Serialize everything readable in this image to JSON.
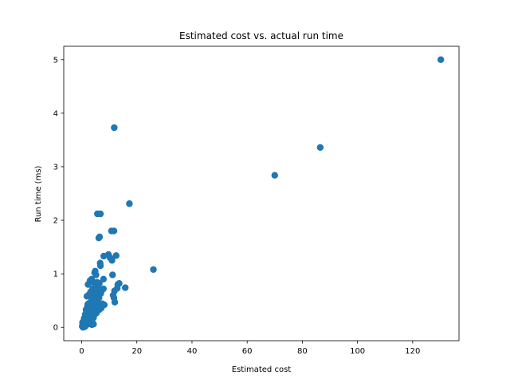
{
  "chart_data": {
    "type": "scatter",
    "title": "Estimated cost vs. actual run time",
    "xlabel": "Estimated cost",
    "ylabel": "Run time (ms)",
    "xlim": [
      -6.5,
      136.8
    ],
    "ylim": [
      -0.25,
      5.25
    ],
    "xticks": [
      0,
      20,
      40,
      60,
      80,
      100,
      120
    ],
    "yticks": [
      0,
      1,
      2,
      3,
      4,
      5
    ],
    "grid": false,
    "marker_color": "#1f77b4",
    "series": [
      {
        "points": [
          [
            130.2,
            5.0
          ],
          [
            86.5,
            3.36
          ],
          [
            70.0,
            2.84
          ],
          [
            11.8,
            3.73
          ],
          [
            17.3,
            2.31
          ],
          [
            5.7,
            2.12
          ],
          [
            6.8,
            2.12
          ],
          [
            6.2,
            1.67
          ],
          [
            6.5,
            1.69
          ],
          [
            10.8,
            1.8
          ],
          [
            11.7,
            1.8
          ],
          [
            26.0,
            1.08
          ],
          [
            8.0,
            1.33
          ],
          [
            9.7,
            1.36
          ],
          [
            10.3,
            1.3
          ],
          [
            12.5,
            1.34
          ],
          [
            6.7,
            1.2
          ],
          [
            6.8,
            1.15
          ],
          [
            11.0,
            1.25
          ],
          [
            4.7,
            1.02
          ],
          [
            4.9,
            1.05
          ],
          [
            5.2,
            0.98
          ],
          [
            11.2,
            0.98
          ],
          [
            2.3,
            0.8
          ],
          [
            3.0,
            0.87
          ],
          [
            3.6,
            0.9
          ],
          [
            4.3,
            0.84
          ],
          [
            5.6,
            0.84
          ],
          [
            6.4,
            0.82
          ],
          [
            7.9,
            0.9
          ],
          [
            13.1,
            0.8
          ],
          [
            13.6,
            0.82
          ],
          [
            15.8,
            0.74
          ],
          [
            12.9,
            0.73
          ],
          [
            11.9,
            0.68
          ],
          [
            11.4,
            0.6
          ],
          [
            11.7,
            0.55
          ],
          [
            12.0,
            0.47
          ],
          [
            7.2,
            0.68
          ],
          [
            7.9,
            0.72
          ],
          [
            6.9,
            0.63
          ],
          [
            1.9,
            0.58
          ],
          [
            2.4,
            0.6
          ],
          [
            3.4,
            0.56
          ],
          [
            4.1,
            0.62
          ],
          [
            4.9,
            0.55
          ],
          [
            5.6,
            0.6
          ],
          [
            6.3,
            0.55
          ],
          [
            2.2,
            0.43
          ],
          [
            2.7,
            0.45
          ],
          [
            3.3,
            0.47
          ],
          [
            3.9,
            0.43
          ],
          [
            4.6,
            0.46
          ],
          [
            5.3,
            0.43
          ],
          [
            6.0,
            0.45
          ],
          [
            6.7,
            0.4
          ],
          [
            7.5,
            0.44
          ],
          [
            8.2,
            0.42
          ],
          [
            1.6,
            0.33
          ],
          [
            2.4,
            0.35
          ],
          [
            3.1,
            0.36
          ],
          [
            3.7,
            0.33
          ],
          [
            4.4,
            0.36
          ],
          [
            5.0,
            0.32
          ],
          [
            5.7,
            0.34
          ],
          [
            6.4,
            0.33
          ],
          [
            7.1,
            0.36
          ],
          [
            1.3,
            0.24
          ],
          [
            1.9,
            0.26
          ],
          [
            2.6,
            0.27
          ],
          [
            3.3,
            0.25
          ],
          [
            4.0,
            0.26
          ],
          [
            4.7,
            0.24
          ],
          [
            5.4,
            0.27
          ],
          [
            0.9,
            0.17
          ],
          [
            1.5,
            0.18
          ],
          [
            2.2,
            0.19
          ],
          [
            2.9,
            0.17
          ],
          [
            3.6,
            0.19
          ],
          [
            4.3,
            0.18
          ],
          [
            0.6,
            0.11
          ],
          [
            1.2,
            0.12
          ],
          [
            1.8,
            0.13
          ],
          [
            2.5,
            0.11
          ],
          [
            3.1,
            0.12
          ],
          [
            3.8,
            0.1
          ],
          [
            0.4,
            0.06
          ],
          [
            1.0,
            0.07
          ],
          [
            1.6,
            0.08
          ],
          [
            2.3,
            0.06
          ],
          [
            3.0,
            0.07
          ],
          [
            3.7,
            0.05
          ],
          [
            4.3,
            0.06
          ],
          [
            0.2,
            0.02
          ],
          [
            0.7,
            0.03
          ],
          [
            1.3,
            0.02
          ],
          [
            0.5,
            0.0
          ],
          [
            1.1,
            0.01
          ],
          [
            0.3,
            0.09
          ],
          [
            1.4,
            0.15
          ],
          [
            2.0,
            0.21
          ],
          [
            2.8,
            0.3
          ],
          [
            3.5,
            0.38
          ],
          [
            4.2,
            0.5
          ],
          [
            5.1,
            0.7
          ],
          [
            5.8,
            0.76
          ],
          [
            4.0,
            0.72
          ],
          [
            3.2,
            0.66
          ],
          [
            2.1,
            0.39
          ],
          [
            1.7,
            0.29
          ]
        ]
      }
    ]
  }
}
